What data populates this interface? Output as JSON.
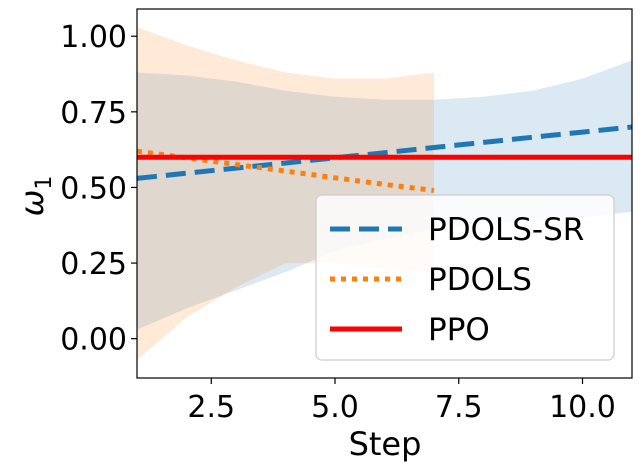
{
  "chart_data": {
    "type": "line",
    "title": "",
    "xlabel": "Step",
    "ylabel": "ω",
    "ylabel_subscript": "1",
    "xlim": [
      1.0,
      11.0
    ],
    "ylim": [
      -0.13,
      1.09
    ],
    "xticks": [
      2.5,
      5.0,
      7.5,
      10.0
    ],
    "xtick_labels": [
      "2.5",
      "5.0",
      "7.5",
      "10.0"
    ],
    "yticks": [
      0.0,
      0.25,
      0.5,
      0.75,
      1.0
    ],
    "ytick_labels": [
      "0.00",
      "0.25",
      "0.50",
      "0.75",
      "1.00"
    ],
    "grid": false,
    "legend_position": "lower-right",
    "series": [
      {
        "name": "PDOLS-SR",
        "color": "#1f77b4",
        "line_style": "dashed",
        "x": [
          1,
          2,
          3,
          4,
          5,
          6,
          7,
          8,
          9,
          10,
          11
        ],
        "y": [
          0.53,
          0.547,
          0.564,
          0.581,
          0.598,
          0.615,
          0.632,
          0.649,
          0.666,
          0.683,
          0.7
        ],
        "band_upper": [
          0.88,
          0.87,
          0.85,
          0.82,
          0.8,
          0.79,
          0.79,
          0.8,
          0.82,
          0.86,
          0.92
        ],
        "band_lower": [
          0.03,
          0.1,
          0.16,
          0.22,
          0.29,
          0.33,
          0.36,
          0.38,
          0.39,
          0.4,
          0.42
        ]
      },
      {
        "name": "PDOLS",
        "color": "#ff7f0e",
        "line_style": "dotted",
        "x": [
          1,
          2,
          3,
          4,
          5,
          6,
          7
        ],
        "y": [
          0.62,
          0.598,
          0.576,
          0.554,
          0.532,
          0.51,
          0.49
        ],
        "band_upper": [
          1.03,
          0.97,
          0.92,
          0.88,
          0.86,
          0.86,
          0.88
        ],
        "band_lower": [
          -0.07,
          0.07,
          0.17,
          0.25,
          0.25,
          0.23,
          0.22
        ]
      },
      {
        "name": "PPO",
        "color": "#ff0000",
        "line_style": "solid",
        "x": [
          1,
          11
        ],
        "y": [
          0.6,
          0.6
        ]
      }
    ]
  }
}
